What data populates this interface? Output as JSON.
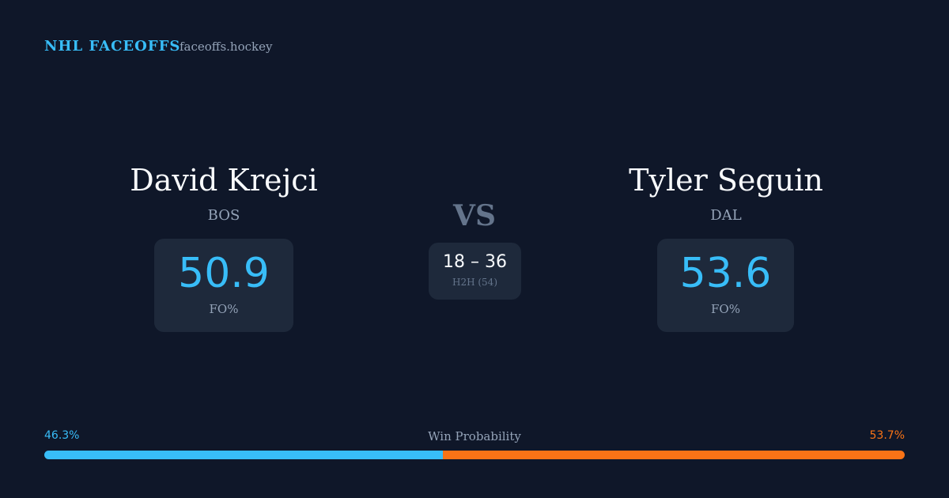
{
  "header": {
    "brand": "NHL FACEOFFS",
    "site": "faceoffs.hockey"
  },
  "players": [
    {
      "name": "David Krejci",
      "team": "BOS",
      "fo_pct": 50.9,
      "fo_label": "FO%"
    },
    {
      "name": "Tyler Seguin",
      "team": "DAL",
      "fo_pct": 53.6,
      "fo_label": "FO%"
    }
  ],
  "vs": "VS",
  "h2h": {
    "score": "18 – 36",
    "label": "H2H (54)"
  },
  "win_probability": {
    "title": "Win Probability",
    "left": {
      "value": 46.3,
      "label": "46.3%",
      "color": "#38bdf8"
    },
    "right": {
      "value": 53.7,
      "label": "53.7%",
      "color": "#f97316"
    }
  }
}
